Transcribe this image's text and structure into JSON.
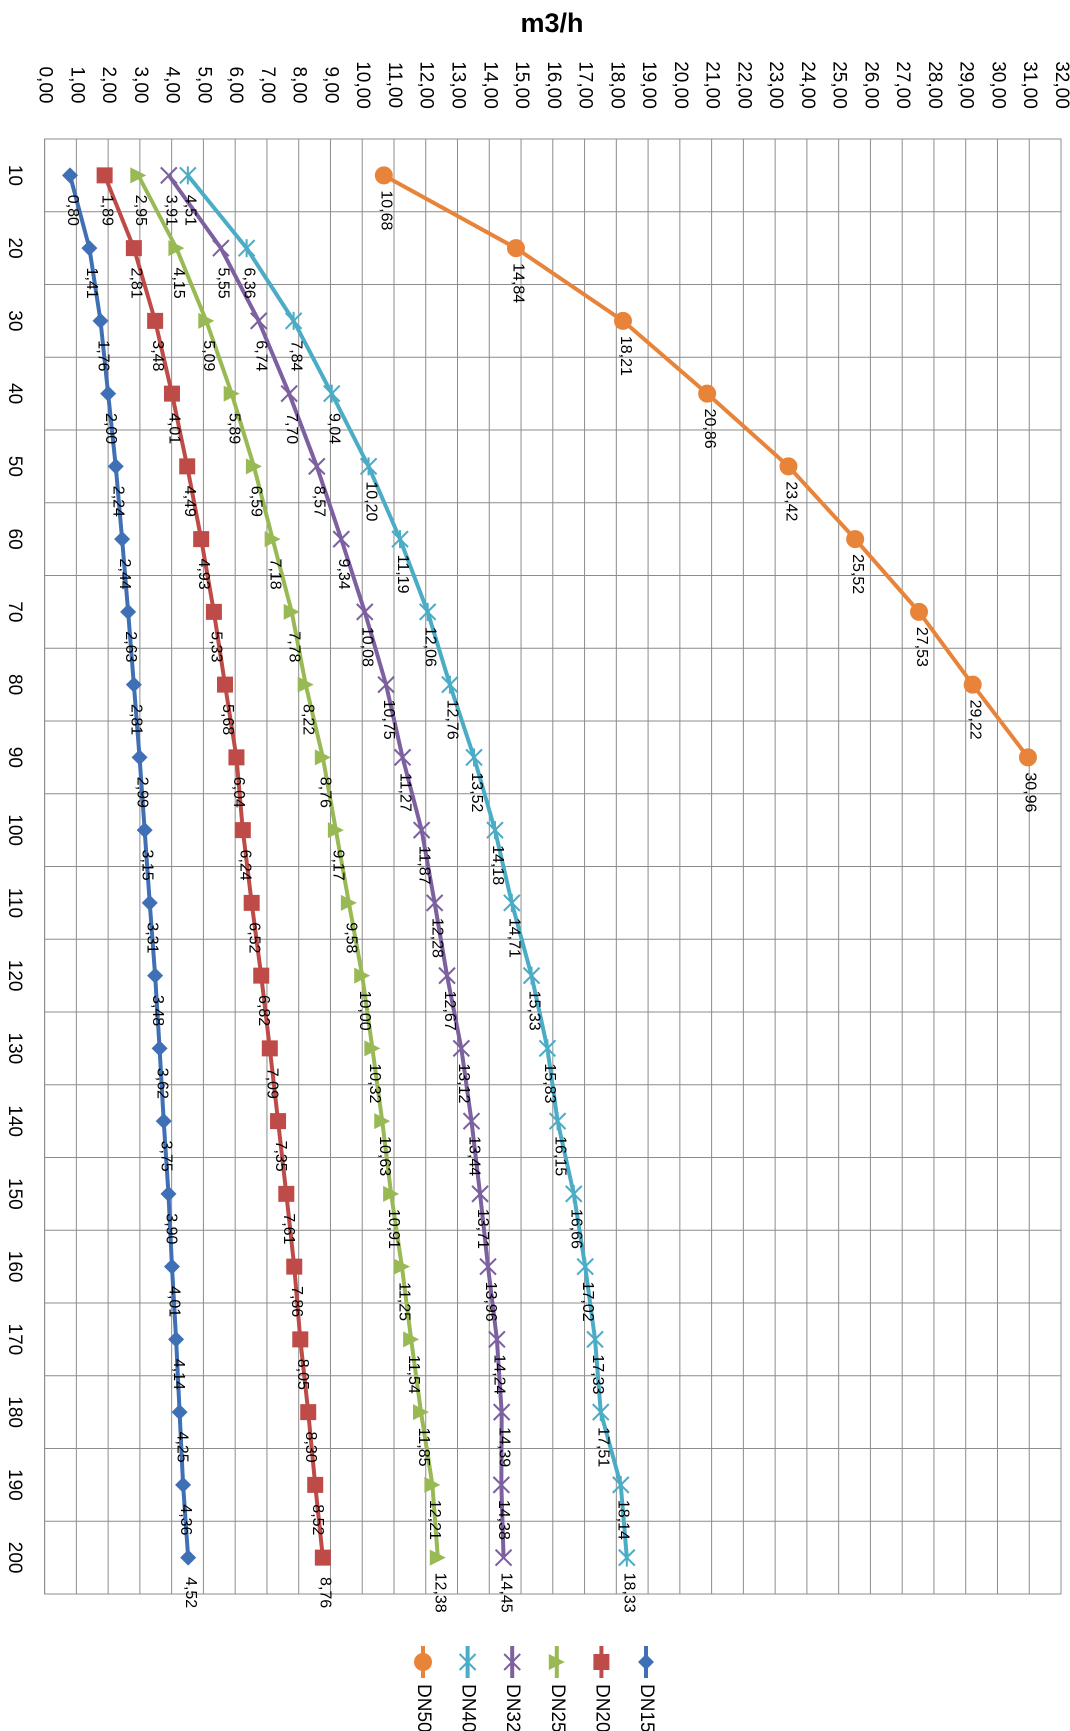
{
  "chart_data": {
    "type": "line",
    "title": "m3/h",
    "orientation": "horizontal",
    "categories": [
      "10",
      "20",
      "30",
      "40",
      "50",
      "60",
      "70",
      "80",
      "90",
      "100",
      "110",
      "120",
      "130",
      "140",
      "150",
      "160",
      "170",
      "180",
      "190",
      "200"
    ],
    "ylim": [
      0,
      32
    ],
    "yticks": [
      {
        "value": 0,
        "label": "0,00"
      },
      {
        "value": 1,
        "label": "1,00"
      },
      {
        "value": 2,
        "label": "2,00"
      },
      {
        "value": 3,
        "label": "3,00"
      },
      {
        "value": 4,
        "label": "4,00"
      },
      {
        "value": 5,
        "label": "5,00"
      },
      {
        "value": 6,
        "label": "6,00"
      },
      {
        "value": 7,
        "label": "7,00"
      },
      {
        "value": 8,
        "label": "8,00"
      },
      {
        "value": 9,
        "label": "9,00"
      },
      {
        "value": 10,
        "label": "10,00"
      },
      {
        "value": 11,
        "label": "11,00"
      },
      {
        "value": 12,
        "label": "12,00"
      },
      {
        "value": 13,
        "label": "13,00"
      },
      {
        "value": 14,
        "label": "14,00"
      },
      {
        "value": 15,
        "label": "15,00"
      },
      {
        "value": 16,
        "label": "16,00"
      },
      {
        "value": 17,
        "label": "17,00"
      },
      {
        "value": 18,
        "label": "18,00"
      },
      {
        "value": 19,
        "label": "19,00"
      },
      {
        "value": 20,
        "label": "20,00"
      },
      {
        "value": 21,
        "label": "21,00"
      },
      {
        "value": 22,
        "label": "22,00"
      },
      {
        "value": 23,
        "label": "23,00"
      },
      {
        "value": 24,
        "label": "24,00"
      },
      {
        "value": 25,
        "label": "25,00"
      },
      {
        "value": 26,
        "label": "26,00"
      },
      {
        "value": 27,
        "label": "27,00"
      },
      {
        "value": 28,
        "label": "28,00"
      },
      {
        "value": 29,
        "label": "29,00"
      },
      {
        "value": 30,
        "label": "30,00"
      },
      {
        "value": 31,
        "label": "31,00"
      },
      {
        "value": 32,
        "label": "32,00"
      }
    ],
    "grid": true,
    "series": [
      {
        "name": "DN15",
        "color": "#3f6fb5",
        "marker": "diamond",
        "values": [
          0.8,
          1.41,
          1.76,
          2.0,
          2.24,
          2.44,
          2.63,
          2.81,
          2.99,
          3.15,
          3.31,
          3.48,
          3.62,
          3.75,
          3.9,
          4.01,
          4.14,
          4.25,
          4.36,
          4.52
        ],
        "value_labels": [
          "0,80",
          "1,41",
          "1,76",
          "2,00",
          "2,24",
          "2,44",
          "2,63",
          "2,81",
          "2,99",
          "3,15",
          "3,31",
          "3,48",
          "3,62",
          "3,75",
          "3,90",
          "4,01",
          "4,14",
          "4,25",
          "4,36",
          "4,52"
        ]
      },
      {
        "name": "DN20",
        "color": "#be4b48",
        "marker": "square",
        "values": [
          1.89,
          2.81,
          3.48,
          4.01,
          4.49,
          4.93,
          5.33,
          5.68,
          6.04,
          6.24,
          6.52,
          6.82,
          7.09,
          7.35,
          7.61,
          7.86,
          8.05,
          8.3,
          8.52,
          8.76
        ],
        "value_labels": [
          "1,89",
          "2,81",
          "3,48",
          "4,01",
          "4,49",
          "4,93",
          "5,33",
          "5,68",
          "6,04",
          "6,24",
          "6,52",
          "6,82",
          "7,09",
          "7,35",
          "7,61",
          "7,86",
          "8,05",
          "8,30",
          "8,52",
          "8,76"
        ]
      },
      {
        "name": "DN25",
        "color": "#98b954",
        "marker": "triangle",
        "values": [
          2.95,
          4.15,
          5.09,
          5.89,
          6.59,
          7.18,
          7.78,
          8.22,
          8.76,
          9.17,
          9.58,
          10.0,
          10.32,
          10.63,
          10.91,
          11.25,
          11.54,
          11.85,
          12.21,
          12.38
        ],
        "value_labels": [
          "2,95",
          "4,15",
          "5,09",
          "5,89",
          "6,59",
          "7,18",
          "7,78",
          "8,22",
          "8,76",
          "9,17",
          "9,58",
          "10,00",
          "10,32",
          "10,63",
          "10,91",
          "11,25",
          "11,54",
          "11,85",
          "12,21",
          "12,38"
        ]
      },
      {
        "name": "DN32",
        "color": "#7d60a0",
        "marker": "x",
        "values": [
          3.91,
          5.55,
          6.74,
          7.7,
          8.57,
          9.34,
          10.08,
          10.75,
          11.27,
          11.87,
          12.28,
          12.67,
          13.12,
          13.44,
          13.71,
          13.96,
          14.24,
          14.39,
          14.38,
          14.45
        ],
        "value_labels": [
          "3,91",
          "5,55",
          "6,74",
          "7,70",
          "8,57",
          "9,34",
          "10,08",
          "10,75",
          "11,27",
          "11,87",
          "12,28",
          "12,67",
          "13,12",
          "13,44",
          "13,71",
          "13,96",
          "14,24",
          "14,39",
          "14,38",
          "14,45"
        ]
      },
      {
        "name": "DN40",
        "color": "#4bacc6",
        "marker": "star",
        "values": [
          4.51,
          6.36,
          7.84,
          9.04,
          10.2,
          11.19,
          12.06,
          12.76,
          13.52,
          14.18,
          14.71,
          15.33,
          15.83,
          16.15,
          16.66,
          17.02,
          17.33,
          17.51,
          18.14,
          18.33
        ],
        "value_labels": [
          "4,51",
          "6,36",
          "7,84",
          "9,04",
          "10,20",
          "11,19",
          "12,06",
          "12,76",
          "13,52",
          "14,18",
          "14,71",
          "15,33",
          "15,83",
          "16,15",
          "16,66",
          "17,02",
          "17,33",
          "17,51",
          "18,14",
          "18,33"
        ]
      },
      {
        "name": "DN50",
        "color": "#e8833a",
        "marker": "circle",
        "values": [
          10.68,
          14.84,
          18.21,
          20.86,
          23.42,
          25.52,
          27.53,
          29.22,
          30.96,
          null,
          null,
          null,
          null,
          null,
          null,
          null,
          null,
          null,
          null,
          null
        ],
        "value_labels": [
          "10,68",
          "14,84",
          "18,21",
          "20,86",
          "23,42",
          "25,52",
          "27,53",
          "29,22",
          "30,96",
          null,
          null,
          null,
          null,
          null,
          null,
          null,
          null,
          null,
          null,
          null
        ]
      }
    ]
  }
}
